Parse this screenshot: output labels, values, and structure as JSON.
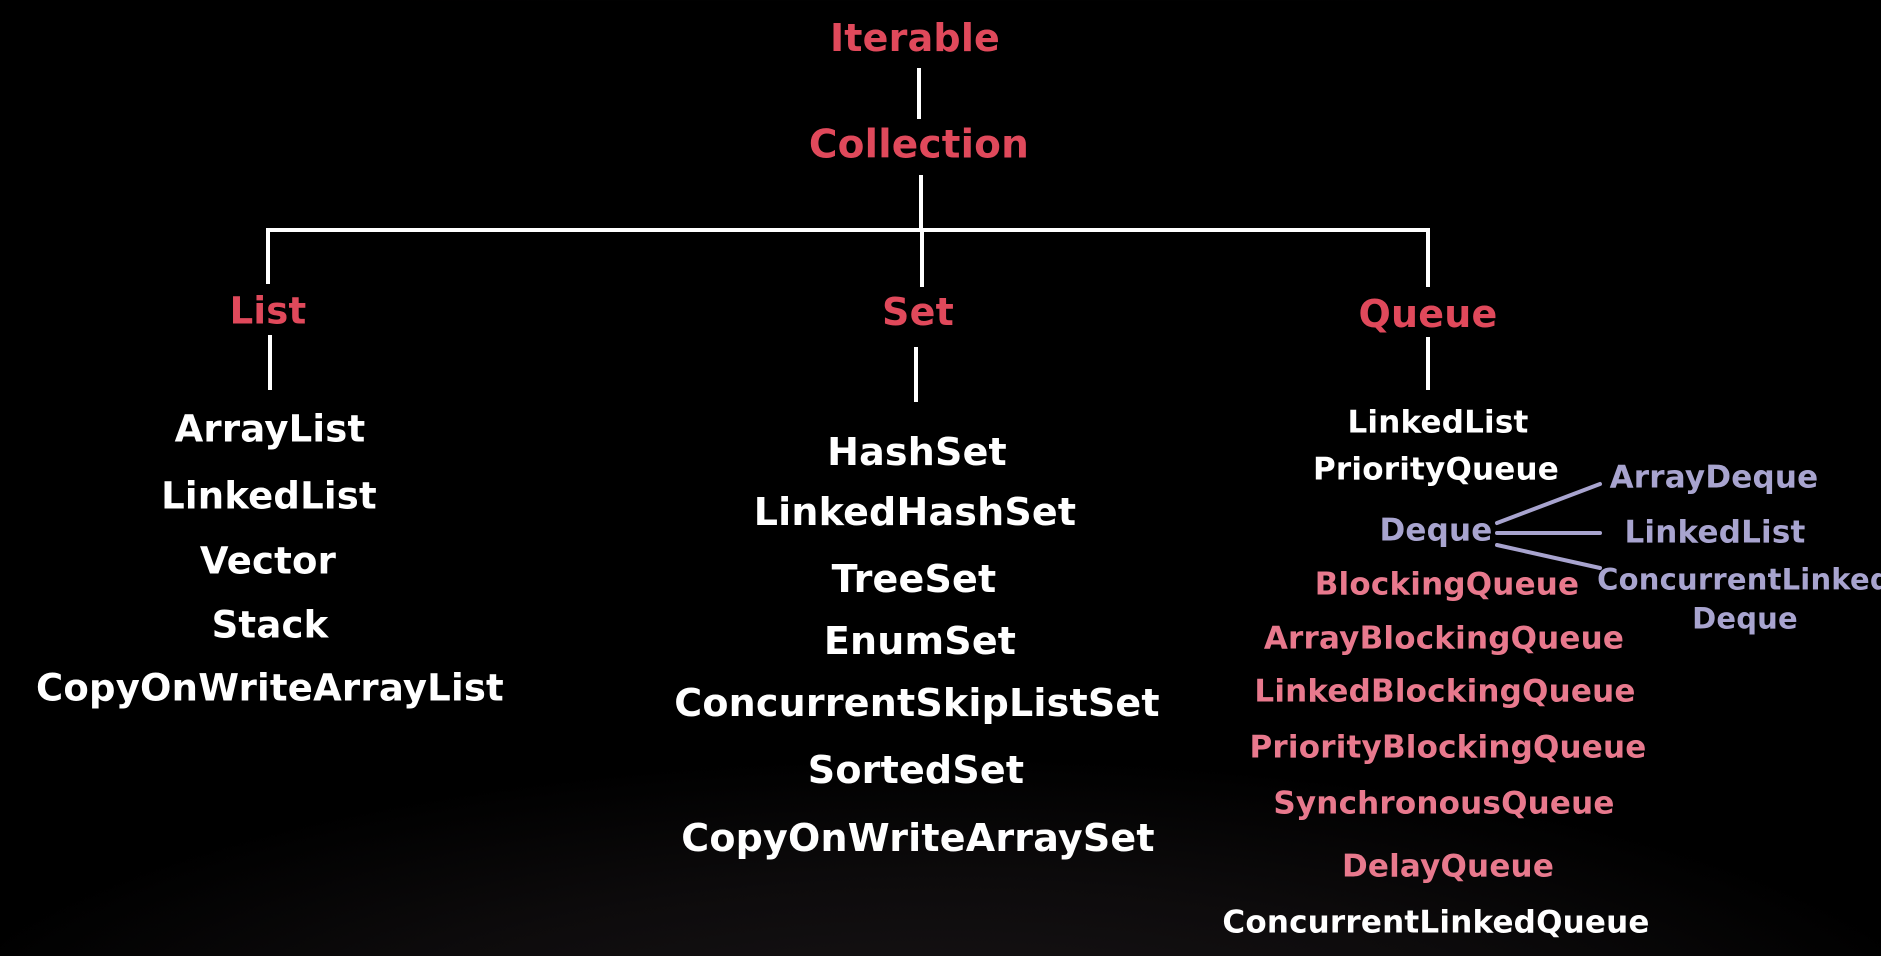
{
  "colors": {
    "background": "#000000",
    "category": "#e0495b",
    "implementation": "#ffffff",
    "deque": "#a8a4cf",
    "blocking": "#e8798d",
    "lines": "#ffffff"
  },
  "hierarchy": {
    "root": "Iterable",
    "collection": "Collection",
    "list": {
      "label": "List",
      "items": [
        "ArrayList",
        "LinkedList",
        "Vector",
        "Stack",
        "CopyOnWriteArrayList"
      ]
    },
    "set": {
      "label": "Set",
      "items": [
        "HashSet",
        "LinkedHashSet",
        "TreeSet",
        "EnumSet",
        "ConcurrentSkipListSet",
        "SortedSet",
        "CopyOnWriteArraySet"
      ]
    },
    "queue": {
      "label": "Queue",
      "items": [
        "LinkedList",
        "PriorityQueue"
      ],
      "deque": {
        "label": "Deque",
        "items": [
          "ArrayDeque",
          "LinkedList",
          "ConcurrentLinked",
          "Deque"
        ]
      },
      "blocking": {
        "label": "BlockingQueue",
        "items": [
          "ArrayBlockingQueue",
          "LinkedBlockingQueue",
          "PriorityBlockingQueue",
          "SynchronousQueue",
          "DelayQueue"
        ]
      },
      "last": "ConcurrentLinkedQueue"
    }
  }
}
